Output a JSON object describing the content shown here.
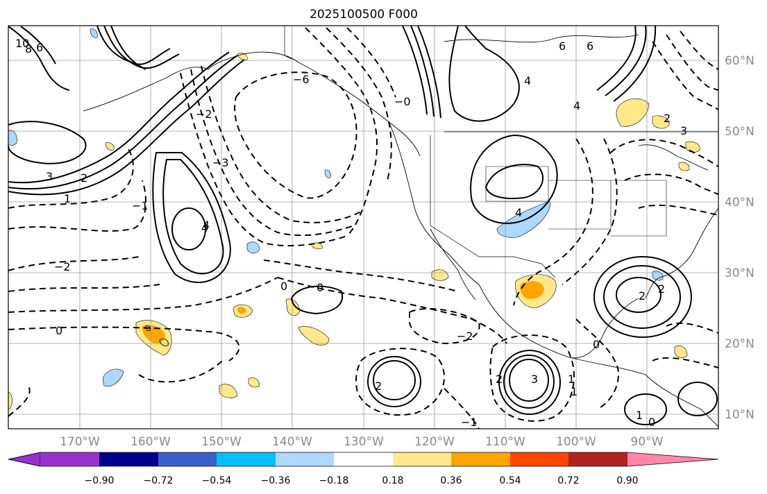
{
  "title": "2025100500 F000",
  "map": {
    "lon_labels": [
      "170°W",
      "160°W",
      "150°W",
      "140°W",
      "130°W",
      "120°W",
      "110°W",
      "100°W",
      "90°W"
    ],
    "lat_labels": [
      "60°N",
      "50°N",
      "40°N",
      "30°N",
      "20°N",
      "10°N"
    ]
  },
  "colorbar": {
    "colors": [
      "#9932cc",
      "#00008b",
      "#3a5fcd",
      "#00bfff",
      "#add8ff",
      "#ffffff",
      "#ffe88a",
      "#ffa500",
      "#ff4500",
      "#b22222",
      "#ff88aa"
    ],
    "ticks": [
      "−0.90",
      "−0.72",
      "−0.54",
      "−0.36",
      "−0.18",
      "0.18",
      "0.36",
      "0.54",
      "0.72",
      "0.90"
    ]
  },
  "contour_labels": [
    "10",
    "8",
    "6",
    "6",
    "6",
    "4",
    "4",
    "4",
    "4",
    "3",
    "3",
    "2",
    "2",
    "2",
    "2",
    "1",
    "1",
    "1",
    "0",
    "0",
    "0",
    "0",
    "0",
    "−0",
    "−1",
    "−1",
    "−2",
    "−2",
    "−2",
    "−3",
    "−6",
    "2",
    "3",
    "4",
    "1",
    "2"
  ]
}
